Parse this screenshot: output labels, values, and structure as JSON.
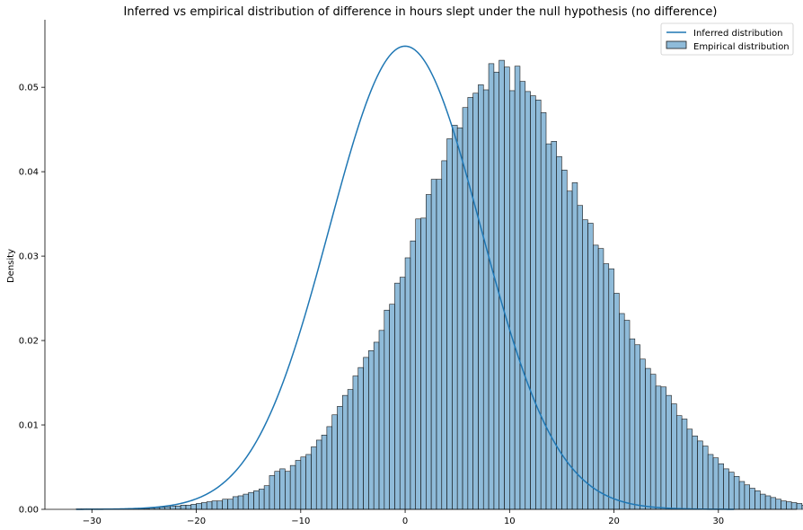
{
  "chart_data": {
    "type": "bar",
    "title": "Inferred vs empirical distribution of difference in hours slept under the null hypothesis (no difference)",
    "xlabel": "",
    "ylabel": "Density",
    "xlim": [
      -34.5,
      37.5
    ],
    "ylim": [
      0,
      0.058
    ],
    "x_ticks": [
      -30,
      -20,
      -10,
      0,
      10,
      20,
      30
    ],
    "x_tick_labels": [
      "−30",
      "−20",
      "−10",
      "0",
      "10",
      "20",
      "30"
    ],
    "y_ticks": [
      0.0,
      0.01,
      0.02,
      0.03,
      0.04,
      0.05
    ],
    "y_tick_labels": [
      "0.00",
      "0.01",
      "0.02",
      "0.03",
      "0.04",
      "0.05"
    ],
    "grid": false,
    "legend_position": "top-right",
    "series": [
      {
        "name": "Inferred distribution",
        "kind": "line",
        "distribution": "normal",
        "mean": 0,
        "std": 7.27,
        "x_range": [
          -31.5,
          31.5
        ],
        "color": "#1f77b4"
      },
      {
        "name": "Empirical distribution",
        "kind": "histogram",
        "color": "#1f77b4",
        "fill_opacity": 0.5,
        "edge_color": "#1b1b1b",
        "bin_edges_start": -31.5,
        "bin_width": 0.5,
        "values": [
          5e-05,
          5e-05,
          5e-05,
          5e-05,
          5e-05,
          5e-05,
          5e-05,
          5e-05,
          5e-05,
          5e-05,
          6e-05,
          0.0001,
          0.0001,
          0.0001,
          0.00015,
          0.0002,
          0.00025,
          0.0003,
          0.0004,
          0.0004,
          0.0005,
          0.0005,
          0.0006,
          0.0007,
          0.0008,
          0.0009,
          0.001,
          0.001,
          0.0012,
          0.0012,
          0.0015,
          0.0016,
          0.0018,
          0.002,
          0.0022,
          0.0024,
          0.0028,
          0.004,
          0.0045,
          0.0048,
          0.0045,
          0.0052,
          0.0058,
          0.0062,
          0.0065,
          0.0074,
          0.0082,
          0.0088,
          0.0098,
          0.0112,
          0.0122,
          0.0135,
          0.0142,
          0.0158,
          0.0168,
          0.018,
          0.0188,
          0.0198,
          0.0212,
          0.0236,
          0.0243,
          0.0268,
          0.0275,
          0.0298,
          0.0318,
          0.0344,
          0.0345,
          0.0373,
          0.0391,
          0.0391,
          0.0413,
          0.0439,
          0.0455,
          0.0452,
          0.0476,
          0.0488,
          0.0493,
          0.0503,
          0.0497,
          0.0528,
          0.0518,
          0.0532,
          0.0524,
          0.0496,
          0.0525,
          0.0507,
          0.0495,
          0.049,
          0.0485,
          0.047,
          0.0433,
          0.0436,
          0.0418,
          0.0402,
          0.0377,
          0.0387,
          0.036,
          0.0343,
          0.0339,
          0.0313,
          0.0309,
          0.0291,
          0.0285,
          0.0256,
          0.0232,
          0.0224,
          0.0202,
          0.0195,
          0.0178,
          0.0167,
          0.016,
          0.0146,
          0.0145,
          0.0135,
          0.0125,
          0.0111,
          0.0107,
          0.0095,
          0.0087,
          0.0081,
          0.0075,
          0.0065,
          0.0061,
          0.0054,
          0.0048,
          0.0044,
          0.0039,
          0.0033,
          0.0029,
          0.0025,
          0.0022,
          0.0018,
          0.0016,
          0.0014,
          0.0012,
          0.001,
          0.0009,
          0.0008,
          0.0007,
          0.0005,
          0.0004,
          0.0004,
          0.0003,
          0.0003,
          0.0002,
          0.0002,
          0.00015,
          0.0001,
          0.0001,
          0.0001,
          8e-05,
          6e-05,
          5e-05,
          5e-05,
          5e-05,
          5e-05,
          5e-05,
          5e-05,
          5e-05,
          5e-05,
          5e-05,
          5e-05,
          5e-05,
          5e-05,
          5e-05,
          5e-05,
          5e-05,
          5e-05,
          5e-05,
          5e-05,
          5e-05,
          5e-05,
          5e-05,
          5e-05,
          5e-05,
          5e-05
        ]
      }
    ]
  }
}
